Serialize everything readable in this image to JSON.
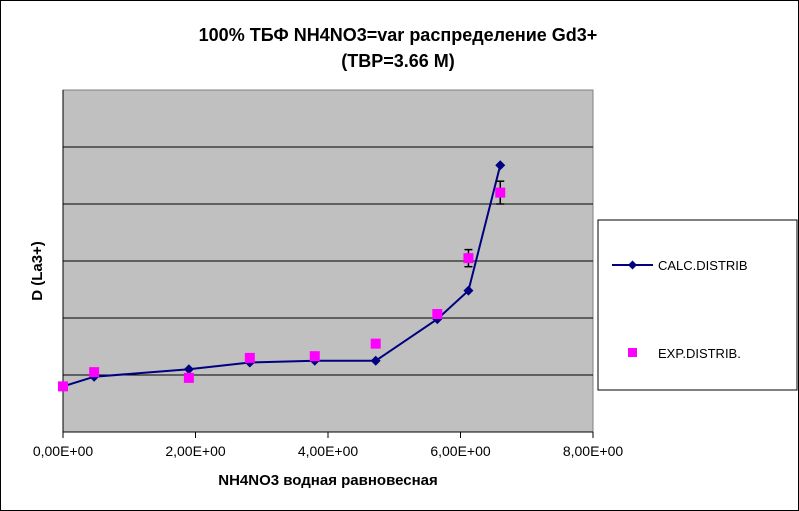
{
  "chart_data": {
    "type": "scatter",
    "title": [
      "100%  ТБФ  NH4NO3=var распределение Gd3+",
      "(TBP=3.66 M)"
    ],
    "xlabel": "NH4NO3  водная равновесная",
    "ylabel": "D (La3+)",
    "xlim": [
      0,
      8
    ],
    "ylim": [
      0,
      6
    ],
    "x_ticks": [
      0,
      2,
      4,
      6,
      8
    ],
    "x_tick_labels": [
      "0,00E+00",
      "2,00E+00",
      "4,00E+00",
      "6,00E+00",
      "8,00E+00"
    ],
    "y_gridlines": [
      1,
      2,
      3,
      4,
      5
    ],
    "y_tick_labels": "none",
    "grid": "horizontal",
    "legend_position": "right",
    "plot_background": "#c0c0c0",
    "series": [
      {
        "name": "CALC.DISTRIB",
        "style": "line-with-diamond-markers",
        "color": "#000080",
        "x": [
          0,
          0.47,
          1.9,
          2.82,
          3.8,
          4.72,
          5.65,
          6.12,
          6.6
        ],
        "y": [
          0.8,
          0.97,
          1.1,
          1.22,
          1.25,
          1.25,
          1.98,
          2.48,
          4.68
        ]
      },
      {
        "name": "EXP.DISTRIB.",
        "style": "square-markers",
        "color": "#ff00ff",
        "x": [
          0,
          0.47,
          1.9,
          2.82,
          3.8,
          4.72,
          5.65,
          6.12,
          6.6
        ],
        "y": [
          0.8,
          1.05,
          0.95,
          1.3,
          1.33,
          1.55,
          2.07,
          3.05,
          4.2
        ],
        "error": [
          0,
          0,
          0,
          0,
          0,
          0,
          0,
          0.15,
          0.2
        ]
      }
    ]
  }
}
